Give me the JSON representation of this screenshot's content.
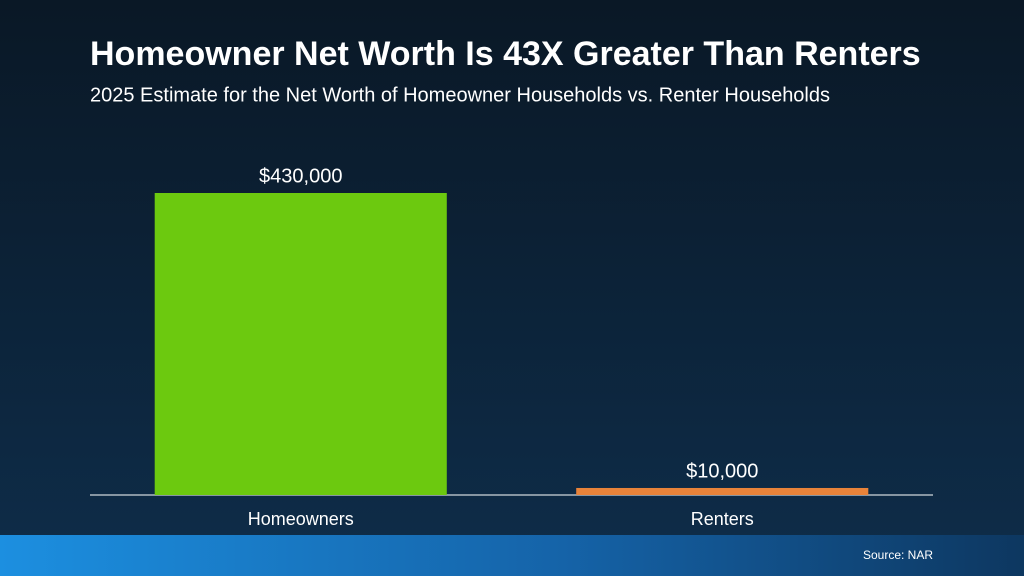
{
  "chart_data": {
    "type": "bar",
    "title": "Homeowner Net Worth Is 43X Greater Than Renters",
    "subtitle": "2025 Estimate for the Net Worth of Homeowner Households vs. Renter Households",
    "categories": [
      "Homeowners",
      "Renters"
    ],
    "values": [
      430000,
      10000
    ],
    "value_labels": [
      "$430,000",
      "$10,000"
    ],
    "colors": [
      "#6cc90f",
      "#e8833a"
    ],
    "source": "Source: NAR"
  }
}
